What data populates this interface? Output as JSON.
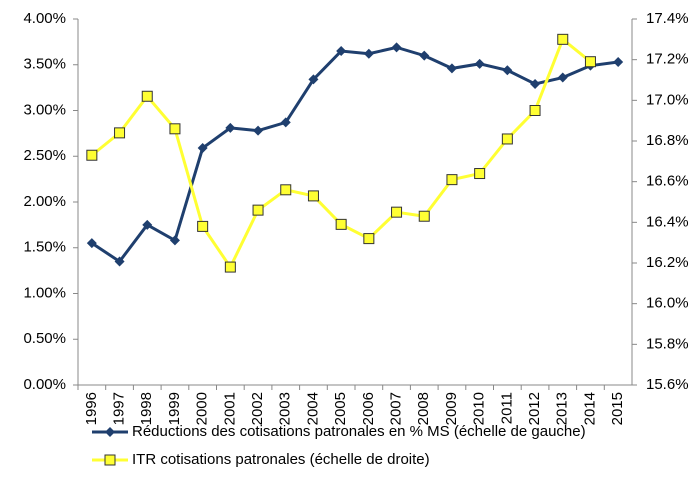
{
  "chart_data": {
    "type": "line",
    "categories": [
      "1996",
      "1997",
      "1998",
      "1999",
      "2000",
      "2001",
      "2002",
      "2003",
      "2004",
      "2005",
      "2006",
      "2007",
      "2008",
      "2009",
      "2010",
      "2011",
      "2012",
      "2013",
      "2014",
      "2015"
    ],
    "ylim": [
      0,
      4
    ],
    "yticks": [
      {
        "value": 0,
        "label": "0.00%"
      },
      {
        "value": 0.5,
        "label": "0.50%"
      },
      {
        "value": 1,
        "label": "1.00%"
      },
      {
        "value": 1.5,
        "label": "1.50%"
      },
      {
        "value": 2,
        "label": "2.00%"
      },
      {
        "value": 2.5,
        "label": "2.50%"
      },
      {
        "value": 3,
        "label": "3.00%"
      },
      {
        "value": 3.5,
        "label": "3.50%"
      },
      {
        "value": 4,
        "label": "4.00%"
      }
    ],
    "y2lim": [
      15.6,
      17.4
    ],
    "y2ticks": [
      {
        "value": 15.6,
        "label": "15.6%"
      },
      {
        "value": 15.8,
        "label": "15.8%"
      },
      {
        "value": 16,
        "label": "16.0%"
      },
      {
        "value": 16.2,
        "label": "16.2%"
      },
      {
        "value": 16.4,
        "label": "16.4%"
      },
      {
        "value": 16.6,
        "label": "16.6%"
      },
      {
        "value": 16.8,
        "label": "16.8%"
      },
      {
        "value": 17,
        "label": "17.0%"
      },
      {
        "value": 17.2,
        "label": "17.2%"
      },
      {
        "value": 17.4,
        "label": "17.4%"
      }
    ],
    "series": [
      {
        "name": "Réductions des cotisations patronales en % MS (échelle de gauche)",
        "color": "#1f3f6e",
        "marker": "diamond",
        "values": [
          1.55,
          1.35,
          1.75,
          1.58,
          2.59,
          2.81,
          2.78,
          2.87,
          3.34,
          3.65,
          3.62,
          3.69,
          3.6,
          3.46,
          3.51,
          3.44,
          3.29,
          3.36,
          3.49,
          3.53
        ]
      },
      {
        "name": "ITR cotisations patronales (échelle de droite)",
        "color": "#ffff33",
        "marker": "square",
        "axis": "y2",
        "values": [
          16.73,
          16.84,
          17.02,
          16.86,
          16.38,
          16.18,
          16.46,
          16.56,
          16.53,
          16.39,
          16.32,
          16.45,
          16.43,
          16.61,
          16.64,
          16.81,
          16.95,
          17.3,
          17.19,
          null
        ]
      }
    ]
  }
}
